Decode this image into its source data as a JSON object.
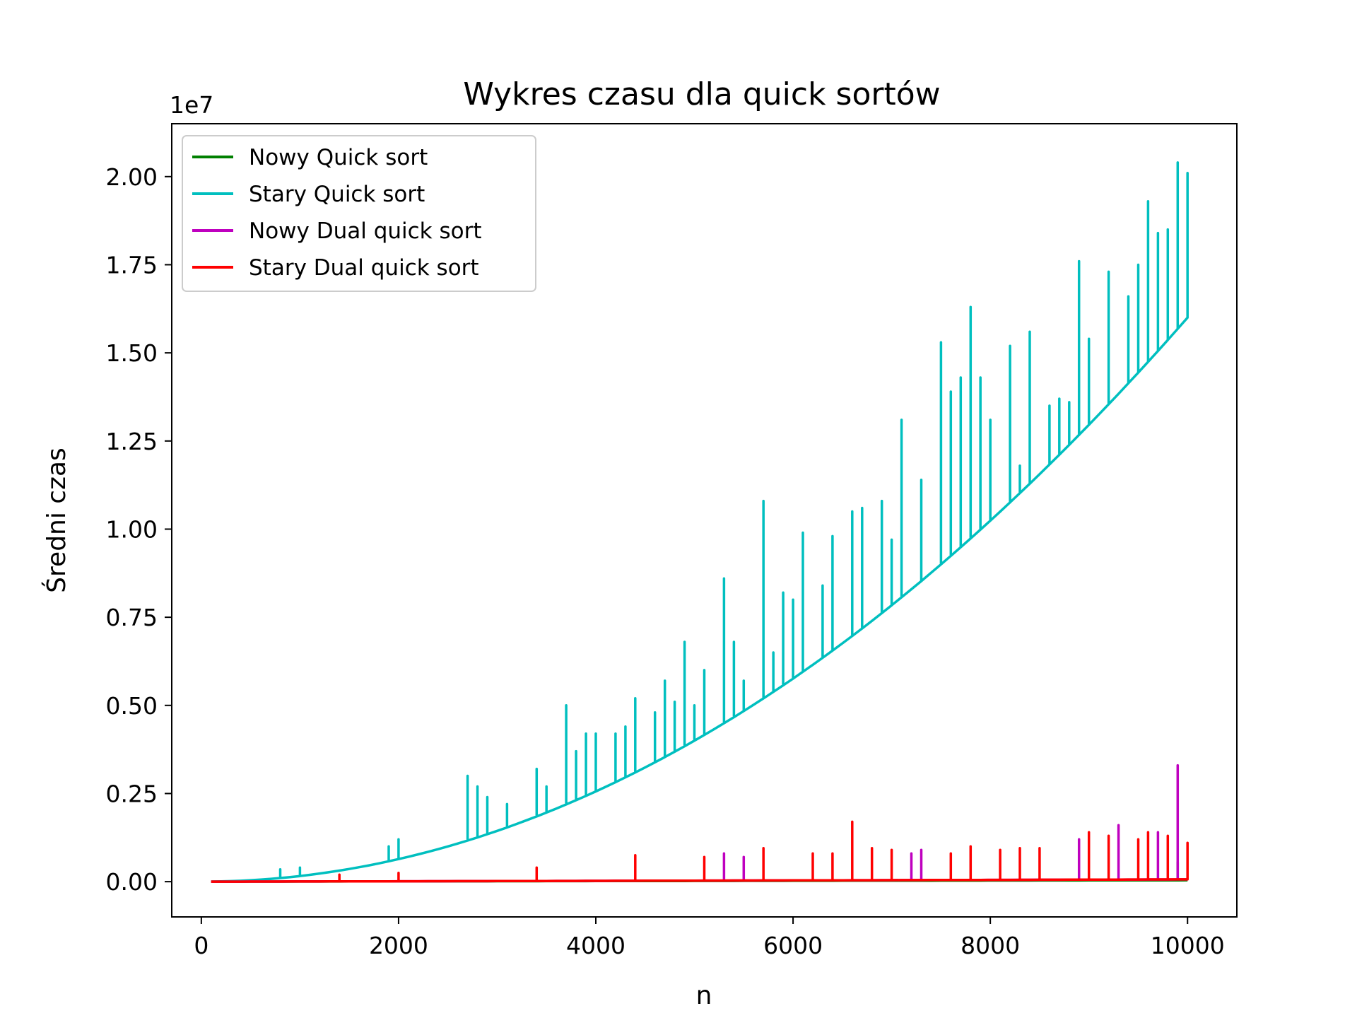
{
  "chart_data": {
    "type": "line",
    "title": "Wykres czasu dla quick sortów",
    "xlabel": "n",
    "ylabel": "Średni czas",
    "y_offset_label": "1e7",
    "xlim": [
      -300,
      10500
    ],
    "ylim": [
      -0.1,
      2.15
    ],
    "y_scale_factor": 10000000,
    "x_ticks": [
      0,
      2000,
      4000,
      6000,
      8000,
      10000
    ],
    "x_tick_labels": [
      "0",
      "2000",
      "4000",
      "6000",
      "8000",
      "10000"
    ],
    "y_ticks": [
      0.0,
      0.25,
      0.5,
      0.75,
      1.0,
      1.25,
      1.5,
      1.75,
      2.0
    ],
    "y_tick_labels": [
      "0.00",
      "0.25",
      "0.50",
      "0.75",
      "1.00",
      "1.25",
      "1.50",
      "1.75",
      "2.00"
    ],
    "legend_position": "upper left",
    "grid": false,
    "x": [
      100,
      10000
    ],
    "x_step": 100,
    "series": [
      {
        "name": "Nowy Quick sort",
        "color": "#008000",
        "base_coeff": 0.004,
        "base_exp": 1.0,
        "spikes": [
          [
            9900,
            0.055
          ]
        ]
      },
      {
        "name": "Stary Quick sort",
        "color": "#00bfbf",
        "base_coeff": 1.6,
        "base_exp": 2.0,
        "spikes": [
          [
            800,
            0.035
          ],
          [
            1000,
            0.04
          ],
          [
            1900,
            0.1
          ],
          [
            2000,
            0.12
          ],
          [
            2700,
            0.3
          ],
          [
            2800,
            0.27
          ],
          [
            2900,
            0.24
          ],
          [
            3100,
            0.22
          ],
          [
            3400,
            0.32
          ],
          [
            3500,
            0.27
          ],
          [
            3700,
            0.5
          ],
          [
            3800,
            0.37
          ],
          [
            3900,
            0.42
          ],
          [
            4000,
            0.42
          ],
          [
            4200,
            0.42
          ],
          [
            4300,
            0.44
          ],
          [
            4400,
            0.52
          ],
          [
            4600,
            0.48
          ],
          [
            4700,
            0.57
          ],
          [
            4800,
            0.51
          ],
          [
            4900,
            0.68
          ],
          [
            5000,
            0.5
          ],
          [
            5100,
            0.6
          ],
          [
            5300,
            0.86
          ],
          [
            5400,
            0.68
          ],
          [
            5500,
            0.57
          ],
          [
            5700,
            1.08
          ],
          [
            5800,
            0.65
          ],
          [
            5900,
            0.82
          ],
          [
            6000,
            0.8
          ],
          [
            6100,
            0.99
          ],
          [
            6300,
            0.84
          ],
          [
            6400,
            0.98
          ],
          [
            6600,
            1.05
          ],
          [
            6700,
            1.06
          ],
          [
            6900,
            1.08
          ],
          [
            7000,
            0.97
          ],
          [
            7100,
            1.31
          ],
          [
            7300,
            1.14
          ],
          [
            7500,
            1.53
          ],
          [
            7600,
            1.39
          ],
          [
            7700,
            1.43
          ],
          [
            7800,
            1.63
          ],
          [
            7900,
            1.43
          ],
          [
            8000,
            1.31
          ],
          [
            8200,
            1.52
          ],
          [
            8300,
            1.18
          ],
          [
            8400,
            1.56
          ],
          [
            8600,
            1.35
          ],
          [
            8700,
            1.37
          ],
          [
            8800,
            1.36
          ],
          [
            8900,
            1.76
          ],
          [
            9000,
            1.54
          ],
          [
            9200,
            1.73
          ],
          [
            9400,
            1.66
          ],
          [
            9500,
            1.75
          ],
          [
            9600,
            1.93
          ],
          [
            9700,
            1.84
          ],
          [
            9800,
            1.85
          ],
          [
            9900,
            2.04
          ],
          [
            10000,
            2.01
          ]
        ]
      },
      {
        "name": "Nowy Dual quick sort",
        "color": "#bf00bf",
        "base_coeff": 0.0065,
        "base_exp": 1.15,
        "spikes": [
          [
            5300,
            0.08
          ],
          [
            5500,
            0.07
          ],
          [
            7200,
            0.08
          ],
          [
            7300,
            0.09
          ],
          [
            8900,
            0.12
          ],
          [
            9300,
            0.16
          ],
          [
            9700,
            0.14
          ],
          [
            9900,
            0.33
          ]
        ]
      },
      {
        "name": "Stary Dual quick sort",
        "color": "#ff0000",
        "base_coeff": 0.0065,
        "base_exp": 1.15,
        "spikes": [
          [
            1400,
            0.02
          ],
          [
            2000,
            0.025
          ],
          [
            3400,
            0.04
          ],
          [
            4400,
            0.075
          ],
          [
            5100,
            0.07
          ],
          [
            5700,
            0.095
          ],
          [
            6200,
            0.08
          ],
          [
            6400,
            0.08
          ],
          [
            6600,
            0.17
          ],
          [
            6800,
            0.095
          ],
          [
            7000,
            0.09
          ],
          [
            7600,
            0.08
          ],
          [
            7800,
            0.1
          ],
          [
            8100,
            0.09
          ],
          [
            8300,
            0.095
          ],
          [
            8500,
            0.095
          ],
          [
            9000,
            0.14
          ],
          [
            9200,
            0.13
          ],
          [
            9500,
            0.12
          ],
          [
            9600,
            0.14
          ],
          [
            9800,
            0.13
          ],
          [
            10000,
            0.11
          ]
        ]
      }
    ]
  }
}
